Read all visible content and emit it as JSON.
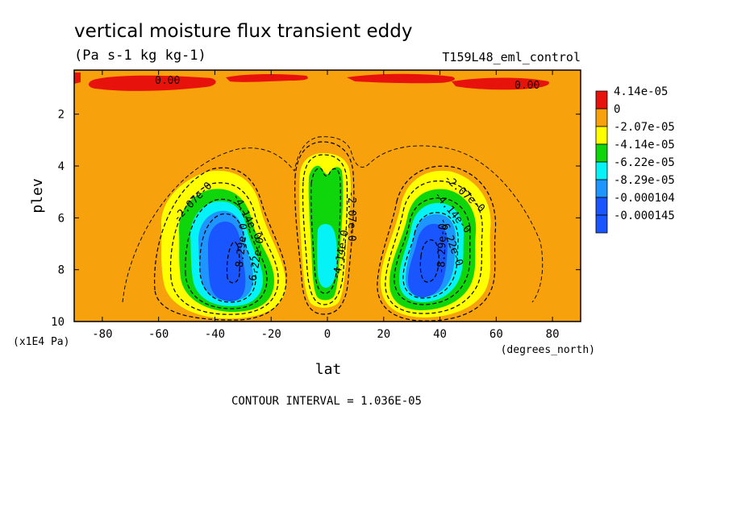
{
  "chart_data": {
    "type": "heatmap",
    "title": "vertical moisture flux transient eddy",
    "units": "(Pa s-1 kg kg-1)",
    "experiment": "T159L48_eml_control",
    "xlabel": "lat",
    "x_units": "(degrees_north)",
    "ylabel": "plev",
    "y_units": "(x1E4 Pa)",
    "xlim": [
      -90,
      90
    ],
    "ylim": [
      10,
      0.3
    ],
    "y_inverted": true,
    "xticks": [
      -80,
      -60,
      -40,
      -20,
      0,
      20,
      40,
      60,
      80
    ],
    "yticks": [
      2,
      4,
      6,
      8,
      10
    ],
    "contour_interval_text": "CONTOUR INTERVAL = 1.036E-05",
    "colorbar": [
      {
        "label": "4.14e-05",
        "color": "#e8120c"
      },
      {
        "label": "0",
        "color": "#f7a10c"
      },
      {
        "label": "-2.07e-05",
        "color": "#ffff00"
      },
      {
        "label": "-4.14e-05",
        "color": "#0ed60a"
      },
      {
        "label": "-6.22e-05",
        "color": "#05f2f7"
      },
      {
        "label": "-8.29e-05",
        "color": "#1f96ff"
      },
      {
        "label": "-0.000104",
        "color": "#1a56ff"
      },
      {
        "label": "-0.000145",
        "color": "#1a56ff"
      }
    ],
    "contour_labels": [
      "0.00",
      "0.00",
      "-2.07e-0",
      "-2.07e-0",
      "-2.07e-0",
      "-4.14e-0",
      "-4.14e-0",
      "-4.14e-0",
      "-6.22e-0",
      "-6.22e-0",
      "-8.29e-0",
      "-8.29e-0"
    ],
    "features": [
      {
        "name": "sh-minimum",
        "lat": -35,
        "plev": 7.4,
        "min_value": -0.000145
      },
      {
        "name": "nh-minimum",
        "lat": 35,
        "plev": 7.4,
        "min_value": -0.000145
      },
      {
        "name": "equatorial-minimum",
        "lat": 1,
        "plev": 6.5,
        "min_value": -8.29e-05
      }
    ]
  },
  "colors": {
    "background": "#f7a10c",
    "red": "#e8120c",
    "yellow": "#ffff00",
    "green": "#0ed60a",
    "cyan": "#05f2f7",
    "lightblue": "#1f96ff",
    "blue": "#1a56ff"
  }
}
